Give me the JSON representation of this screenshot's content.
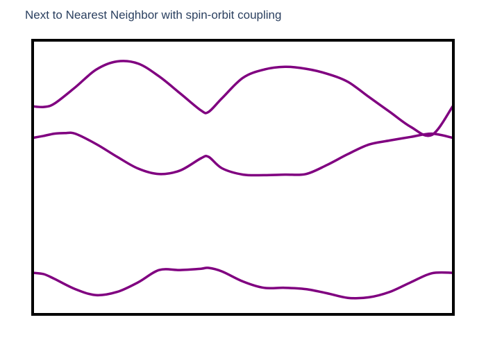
{
  "chart_data": {
    "type": "line",
    "title": "Next to Nearest Neighbor with spin-orbit coupling",
    "xlabel": "",
    "ylabel": "",
    "xlim": [
      0,
      1
    ],
    "ylim": [
      0,
      1
    ],
    "show_axes": false,
    "grid": false,
    "legend": false,
    "line_color": "#800080",
    "frame_color": "#000000",
    "series": [
      {
        "x": [
          0,
          0.025,
          0.05,
          0.1,
          0.15,
          0.2,
          0.25,
          0.3,
          0.35,
          0.4,
          0.418,
          0.45,
          0.5,
          0.55,
          0.6,
          0.65,
          0.7,
          0.75,
          0.8,
          0.85,
          0.9,
          0.95,
          1
        ],
        "y": [
          0.76,
          0.758,
          0.77,
          0.83,
          0.895,
          0.925,
          0.917,
          0.87,
          0.808,
          0.745,
          0.74,
          0.79,
          0.865,
          0.895,
          0.905,
          0.898,
          0.88,
          0.85,
          0.795,
          0.74,
          0.685,
          0.655,
          0.76
        ]
      },
      {
        "x": [
          0,
          0.025,
          0.05,
          0.075,
          0.1,
          0.15,
          0.2,
          0.25,
          0.3,
          0.35,
          0.4,
          0.418,
          0.45,
          0.5,
          0.55,
          0.6,
          0.65,
          0.7,
          0.75,
          0.8,
          0.85,
          0.9,
          0.95,
          1
        ],
        "y": [
          0.645,
          0.652,
          0.66,
          0.662,
          0.66,
          0.622,
          0.575,
          0.532,
          0.512,
          0.525,
          0.57,
          0.575,
          0.533,
          0.51,
          0.508,
          0.51,
          0.512,
          0.545,
          0.585,
          0.62,
          0.635,
          0.648,
          0.66,
          0.645
        ]
      },
      {
        "x": [
          0,
          0.025,
          0.05,
          0.1,
          0.15,
          0.2,
          0.25,
          0.3,
          0.35,
          0.4,
          0.418,
          0.45,
          0.5,
          0.55,
          0.6,
          0.65,
          0.7,
          0.75,
          0.8,
          0.85,
          0.9,
          0.95,
          1
        ],
        "y": [
          0.15,
          0.145,
          0.128,
          0.09,
          0.068,
          0.08,
          0.115,
          0.16,
          0.16,
          0.165,
          0.168,
          0.155,
          0.118,
          0.095,
          0.095,
          0.09,
          0.075,
          0.058,
          0.06,
          0.08,
          0.115,
          0.148,
          0.15
        ]
      }
    ]
  }
}
